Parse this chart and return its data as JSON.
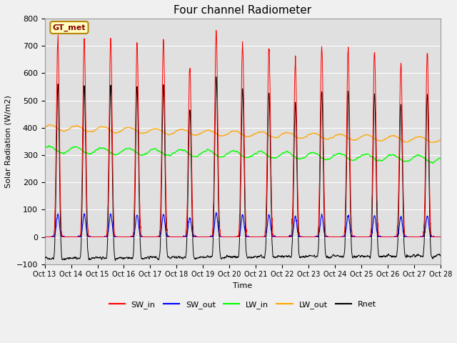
{
  "title": "Four channel Radiometer",
  "xlabel": "Time",
  "ylabel": "Solar Radiation (W/m2)",
  "ylim": [
    -100,
    800
  ],
  "bg_color": "#e8e8e8",
  "legend_entries": [
    "SW_in",
    "SW_out",
    "LW_in",
    "LW_out",
    "Rnet"
  ],
  "legend_colors": [
    "red",
    "blue",
    "green",
    "orange",
    "black"
  ],
  "annotation_text": "GT_met",
  "annotation_bg": "#ffffc0",
  "annotation_border": "#b8860b",
  "x_tick_labels": [
    "Oct 13",
    "Oct 14",
    "Oct 15",
    "Oct 16",
    "Oct 17",
    "Oct 18",
    "Oct 19",
    "Oct 20",
    "Oct 21",
    "Oct 22",
    "Oct 23",
    "Oct 24",
    "Oct 25",
    "Oct 26",
    "Oct 27",
    "Oct 28"
  ],
  "n_days": 15,
  "points_per_day": 144
}
